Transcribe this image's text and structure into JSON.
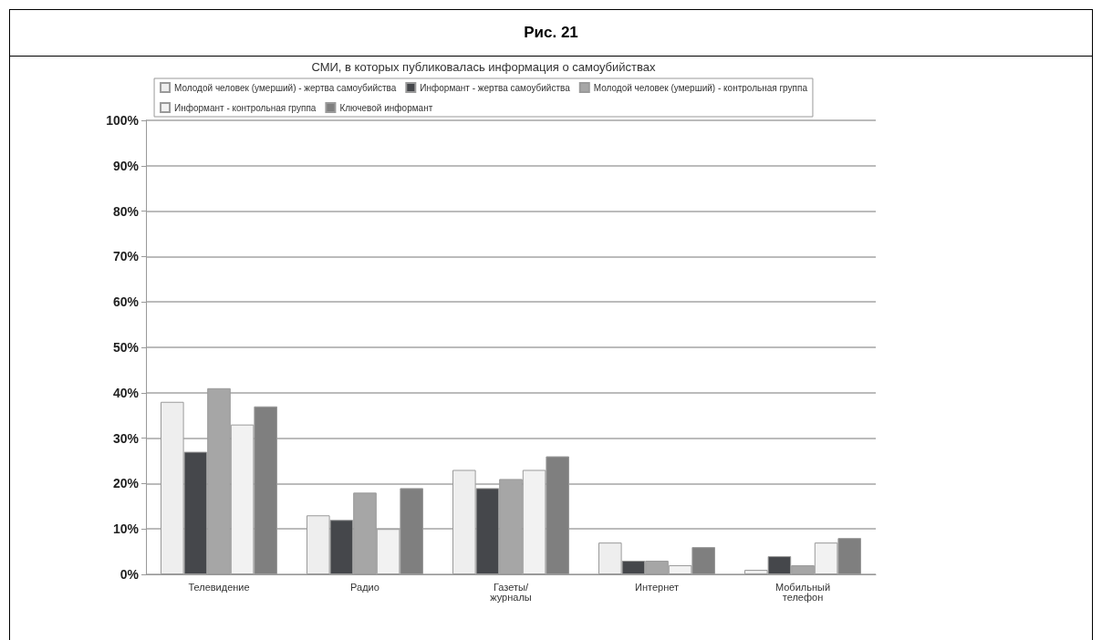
{
  "chart_data": {
    "type": "bar",
    "title": "Рис. 21",
    "subtitle": "СМИ, в которых публиковалась информация о самоубийствах",
    "categories": [
      "Телевидение",
      "Радио",
      "Газеты/\nжурналы",
      "Интернет",
      "Мобильный\nтелефон"
    ],
    "series": [
      {
        "name": "Молодой человек (умерший) - жертва самоубийства",
        "color": "#eeeeee",
        "values": [
          38,
          13,
          23,
          7,
          1
        ]
      },
      {
        "name": "Информант - жертва самоубийства",
        "color": "#45474b",
        "values": [
          27,
          12,
          19,
          3,
          4
        ]
      },
      {
        "name": "Молодой человек (умерший) - контрольная группа",
        "color": "#a6a6a6",
        "values": [
          41,
          18,
          21,
          3,
          2
        ]
      },
      {
        "name": "Информант - контрольная группа",
        "color": "#f2f2f2",
        "values": [
          33,
          10,
          23,
          2,
          7
        ]
      },
      {
        "name": "Ключевой информант",
        "color": "#7f7f7f",
        "values": [
          37,
          19,
          26,
          6,
          8
        ]
      }
    ],
    "ylim": [
      0,
      100
    ],
    "yticks": [
      {
        "value": 0,
        "label": "0%"
      },
      {
        "value": 10,
        "label": "10%"
      },
      {
        "value": 20,
        "label": "20%"
      },
      {
        "value": 30,
        "label": "30%"
      },
      {
        "value": 40,
        "label": "40%"
      },
      {
        "value": 50,
        "label": "50%"
      },
      {
        "value": 60,
        "label": "60%"
      },
      {
        "value": 70,
        "label": "70%"
      },
      {
        "value": 80,
        "label": "80%"
      },
      {
        "value": 90,
        "label": "90%"
      },
      {
        "value": 100,
        "label": "100%"
      }
    ],
    "grid": "y",
    "legend": "top"
  }
}
